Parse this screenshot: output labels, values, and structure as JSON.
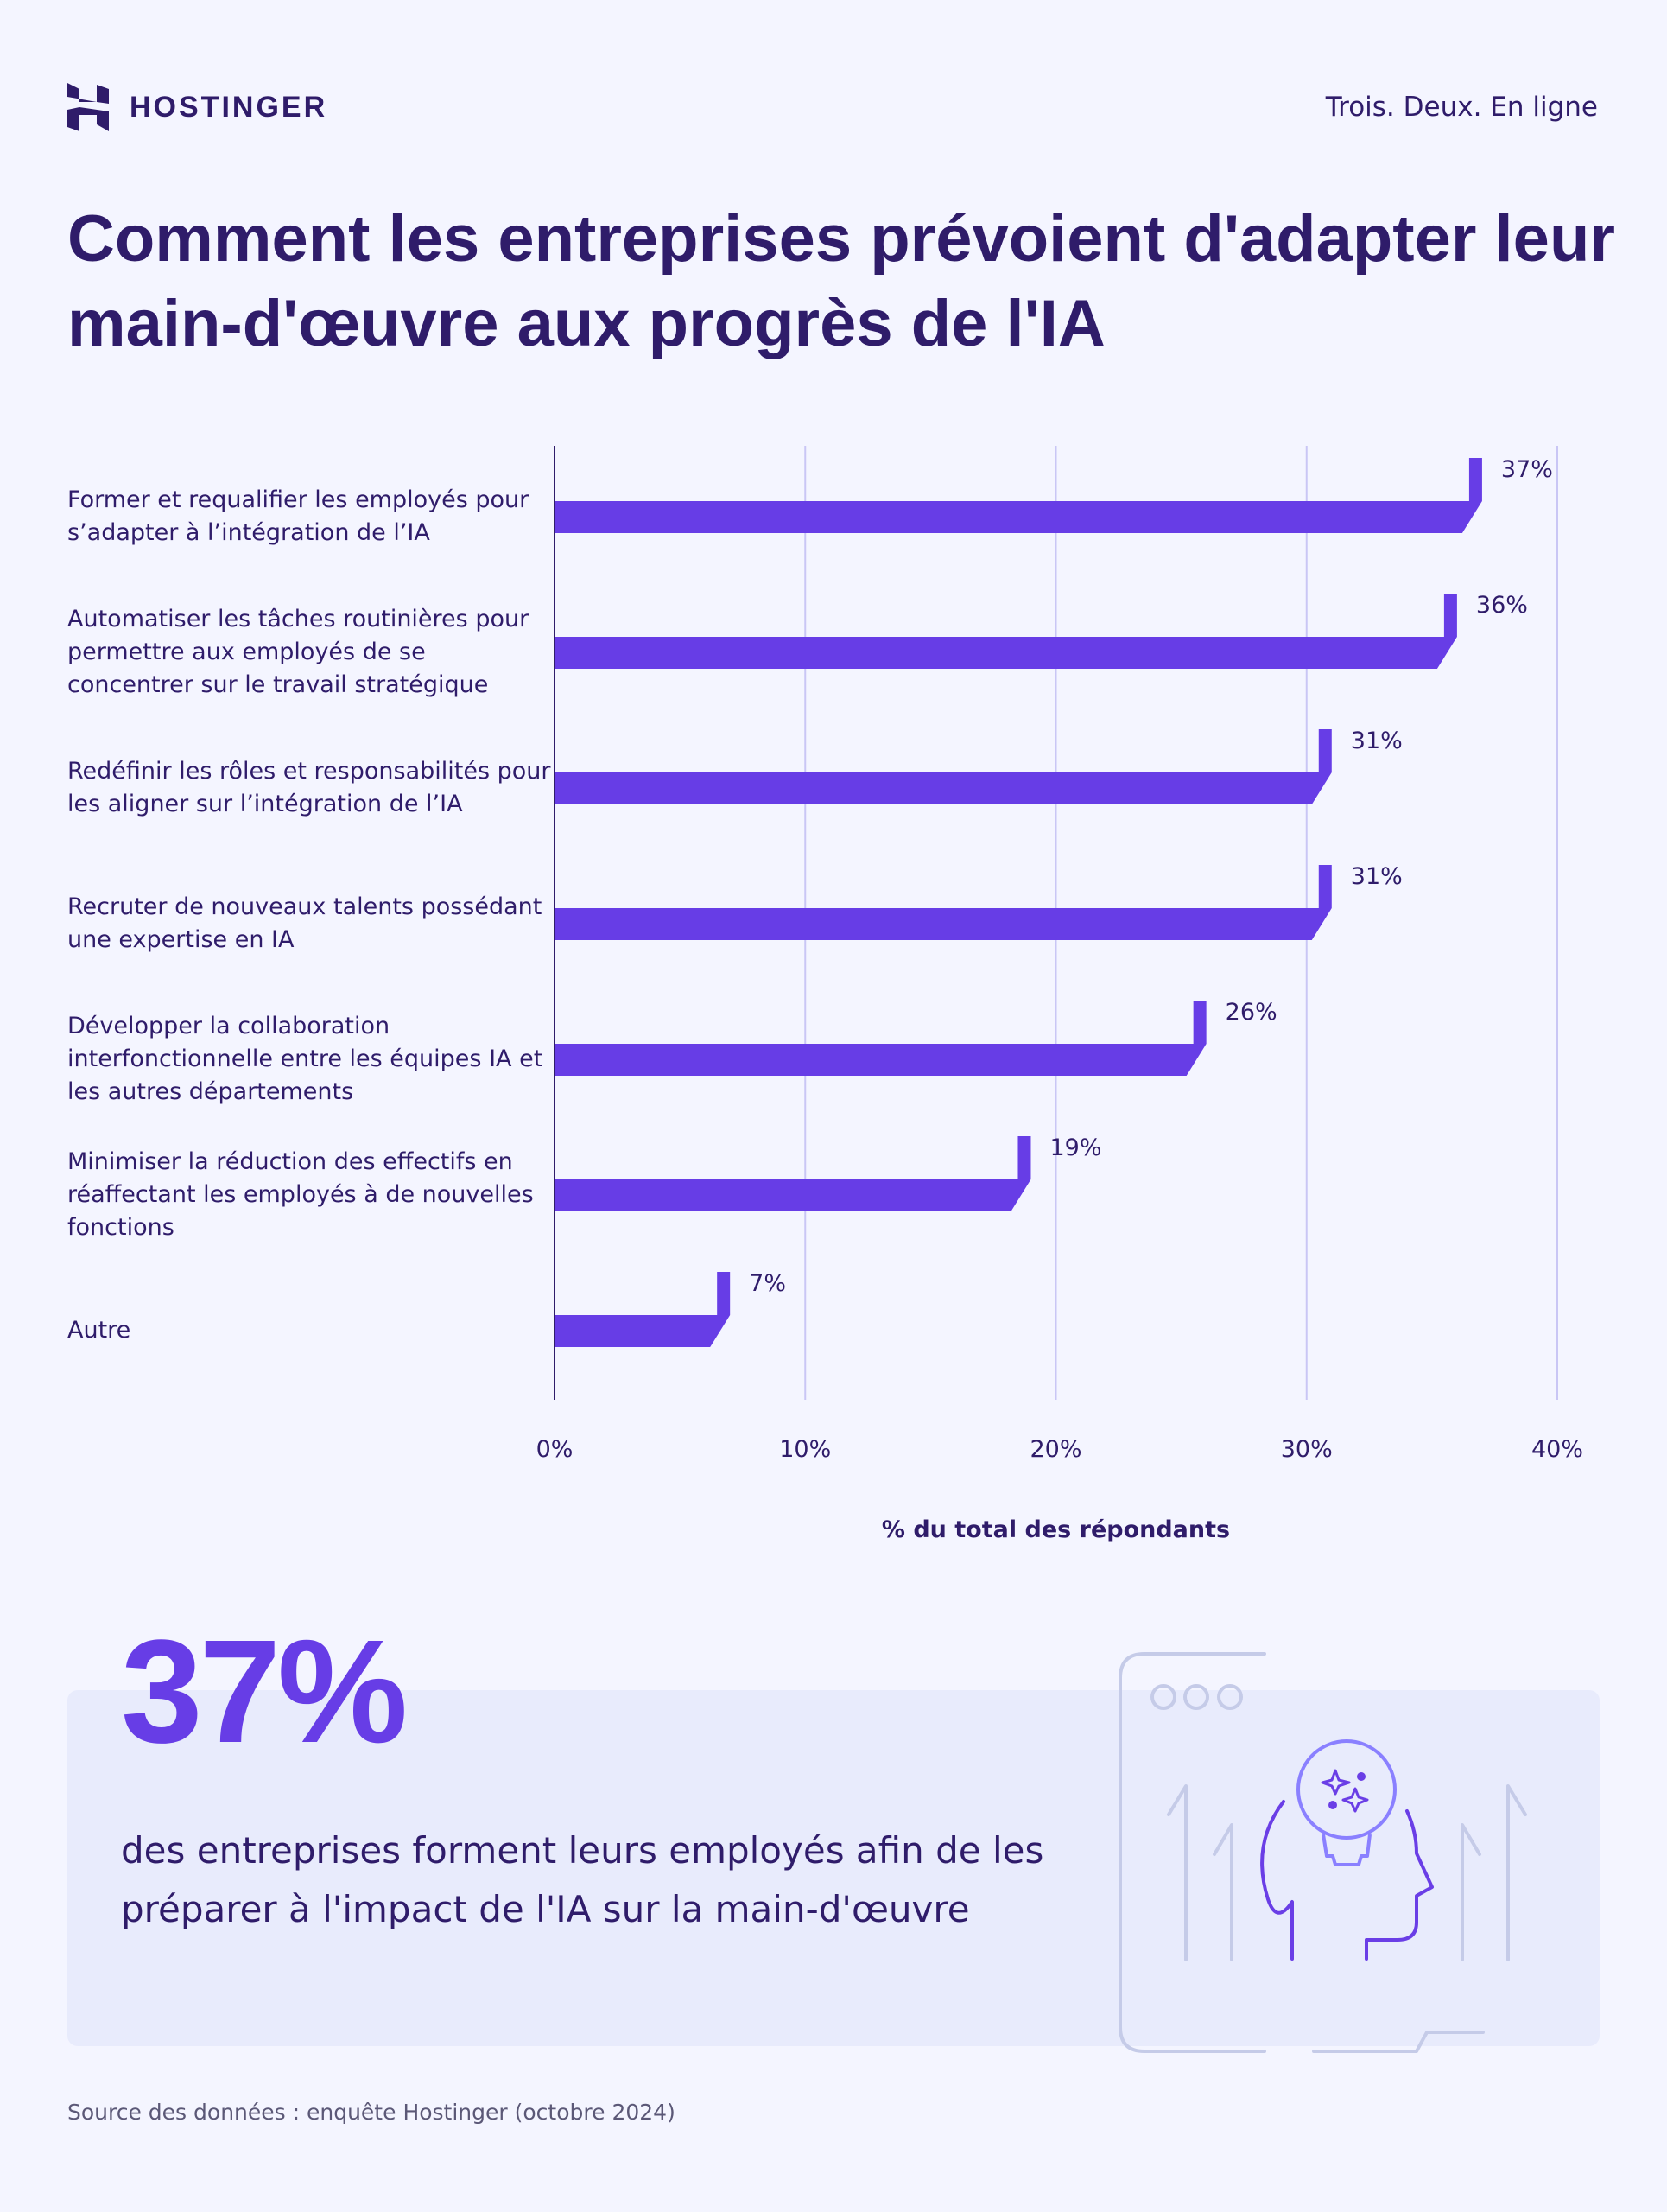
{
  "header": {
    "brand": "HOSTINGER",
    "tagline": "Trois. Deux. En ligne"
  },
  "title": "Comment les entreprises prévoient d'adapter leur main-d'œuvre aux progrès de l'IA",
  "chart_data": {
    "type": "bar",
    "orientation": "horizontal",
    "categories": [
      "Former et requalifier les employés pour s’adapter à l’intégration de l’IA",
      "Automatiser les tâches routinières pour permettre aux employés de se concentrer sur le travail stratégique",
      "Redéfinir les rôles et responsabilités pour les aligner sur l’intégration de l’IA",
      "Recruter de nouveaux talents possédant une expertise en IA",
      "Développer la collaboration interfonctionnelle entre les équipes IA et les autres départements",
      "Minimiser la réduction des effectifs en réaffectant les employés à de nouvelles fonctions",
      "Autre"
    ],
    "values": [
      37,
      36,
      31,
      31,
      26,
      19,
      7
    ],
    "value_labels": [
      "37%",
      "36%",
      "31%",
      "31%",
      "26%",
      "19%",
      "7%"
    ],
    "xlim": [
      0,
      40
    ],
    "ticks": [
      "0%",
      "10%",
      "20%",
      "30%",
      "40%"
    ],
    "xlabel": "% du total des répondants",
    "grid": "vertical",
    "bar_color": "#673de6"
  },
  "highlight": {
    "value": "37%",
    "text": "des entreprises forment leurs employés afin de les préparer à l'impact de l'IA sur la main-d'œuvre"
  },
  "source": "Source des données : enquête Hostinger (octobre 2024)",
  "colors": {
    "accent": "#673de6",
    "text": "#2f1c6a",
    "background": "#f4f5ff",
    "panel": "#e8ebfc"
  }
}
